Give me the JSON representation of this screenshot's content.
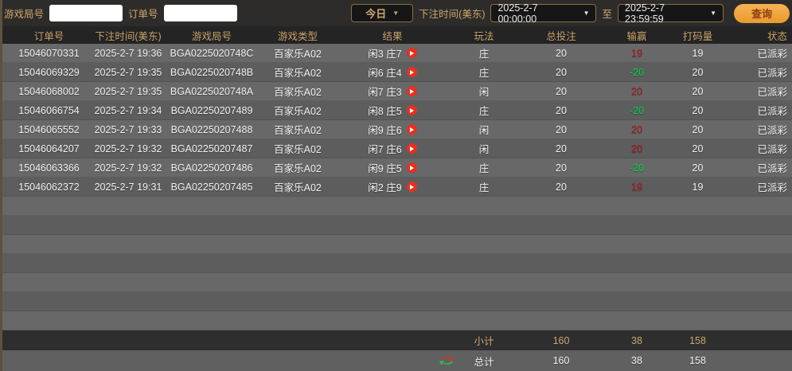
{
  "topbar": {
    "game_round_label": "游戏局号",
    "game_round_value": "",
    "order_label": "订单号",
    "order_value": "",
    "period_selected": "今日",
    "bet_time_label": "下注时间(美东)",
    "date_from": "2025-2-7 00:00:00",
    "to_label": "至",
    "date_to": "2025-2-7 23:59:59",
    "search_label": "查询"
  },
  "table": {
    "columns": [
      "订单号",
      "下注时间(美东)",
      "游戏局号",
      "游戏类型",
      "结果",
      "玩法",
      "总投注",
      "输赢",
      "打码量",
      "状态"
    ],
    "rows": [
      {
        "order_no": "15046070331",
        "bet_time": "2025-2-7 19:36",
        "round_no": "BGA0225020748C",
        "game_type": "百家乐A02",
        "result": "闲3 庄7",
        "play": "庄",
        "total_bet": "20",
        "win_loss": "19",
        "turnover": "19",
        "status": "已派彩"
      },
      {
        "order_no": "15046069329",
        "bet_time": "2025-2-7 19:35",
        "round_no": "BGA0225020748B",
        "game_type": "百家乐A02",
        "result": "闲6 庄4",
        "play": "庄",
        "total_bet": "20",
        "win_loss": "-20",
        "turnover": "20",
        "status": "已派彩"
      },
      {
        "order_no": "15046068002",
        "bet_time": "2025-2-7 19:35",
        "round_no": "BGA0225020748A",
        "game_type": "百家乐A02",
        "result": "闲7 庄3",
        "play": "闲",
        "total_bet": "20",
        "win_loss": "20",
        "turnover": "20",
        "status": "已派彩"
      },
      {
        "order_no": "15046066754",
        "bet_time": "2025-2-7 19:34",
        "round_no": "BGA02250207489",
        "game_type": "百家乐A02",
        "result": "闲8 庄5",
        "play": "庄",
        "total_bet": "20",
        "win_loss": "-20",
        "turnover": "20",
        "status": "已派彩"
      },
      {
        "order_no": "15046065552",
        "bet_time": "2025-2-7 19:33",
        "round_no": "BGA02250207488",
        "game_type": "百家乐A02",
        "result": "闲9 庄6",
        "play": "闲",
        "total_bet": "20",
        "win_loss": "20",
        "turnover": "20",
        "status": "已派彩"
      },
      {
        "order_no": "15046064207",
        "bet_time": "2025-2-7 19:32",
        "round_no": "BGA02250207487",
        "game_type": "百家乐A02",
        "result": "闲7 庄6",
        "play": "闲",
        "total_bet": "20",
        "win_loss": "20",
        "turnover": "20",
        "status": "已派彩"
      },
      {
        "order_no": "15046063366",
        "bet_time": "2025-2-7 19:32",
        "round_no": "BGA02250207486",
        "game_type": "百家乐A02",
        "result": "闲9 庄5",
        "play": "庄",
        "total_bet": "20",
        "win_loss": "-20",
        "turnover": "20",
        "status": "已派彩"
      },
      {
        "order_no": "15046062372",
        "bet_time": "2025-2-7 19:31",
        "round_no": "BGA02250207485",
        "game_type": "百家乐A02",
        "result": "闲2 庄9",
        "play": "庄",
        "total_bet": "20",
        "win_loss": "19",
        "turnover": "19",
        "status": "已派彩"
      }
    ],
    "empty_row_count": 7
  },
  "footer": {
    "subtotal": {
      "label": "小计",
      "total_bet": "160",
      "win_loss": "38",
      "turnover": "158"
    },
    "total": {
      "label": "总计",
      "total_bet": "160",
      "win_loss": "38",
      "turnover": "158"
    }
  },
  "icons": {
    "caret": "▼",
    "play_icon": "play-triangle-in-red-circle",
    "total_row_icon": "red-green-exchange-arrows"
  },
  "colors": {
    "gold": "#cda671",
    "red": "#ae1616",
    "green": "#00d44c",
    "row_light": "#686868",
    "row_dark": "#5d5d5d",
    "topbar_bg": "#2d2c2a",
    "head_bg": "#242424",
    "subtotal_bg": "#2e2e2e",
    "total_bg": "#606060",
    "btn_orange": "#f0a742"
  }
}
